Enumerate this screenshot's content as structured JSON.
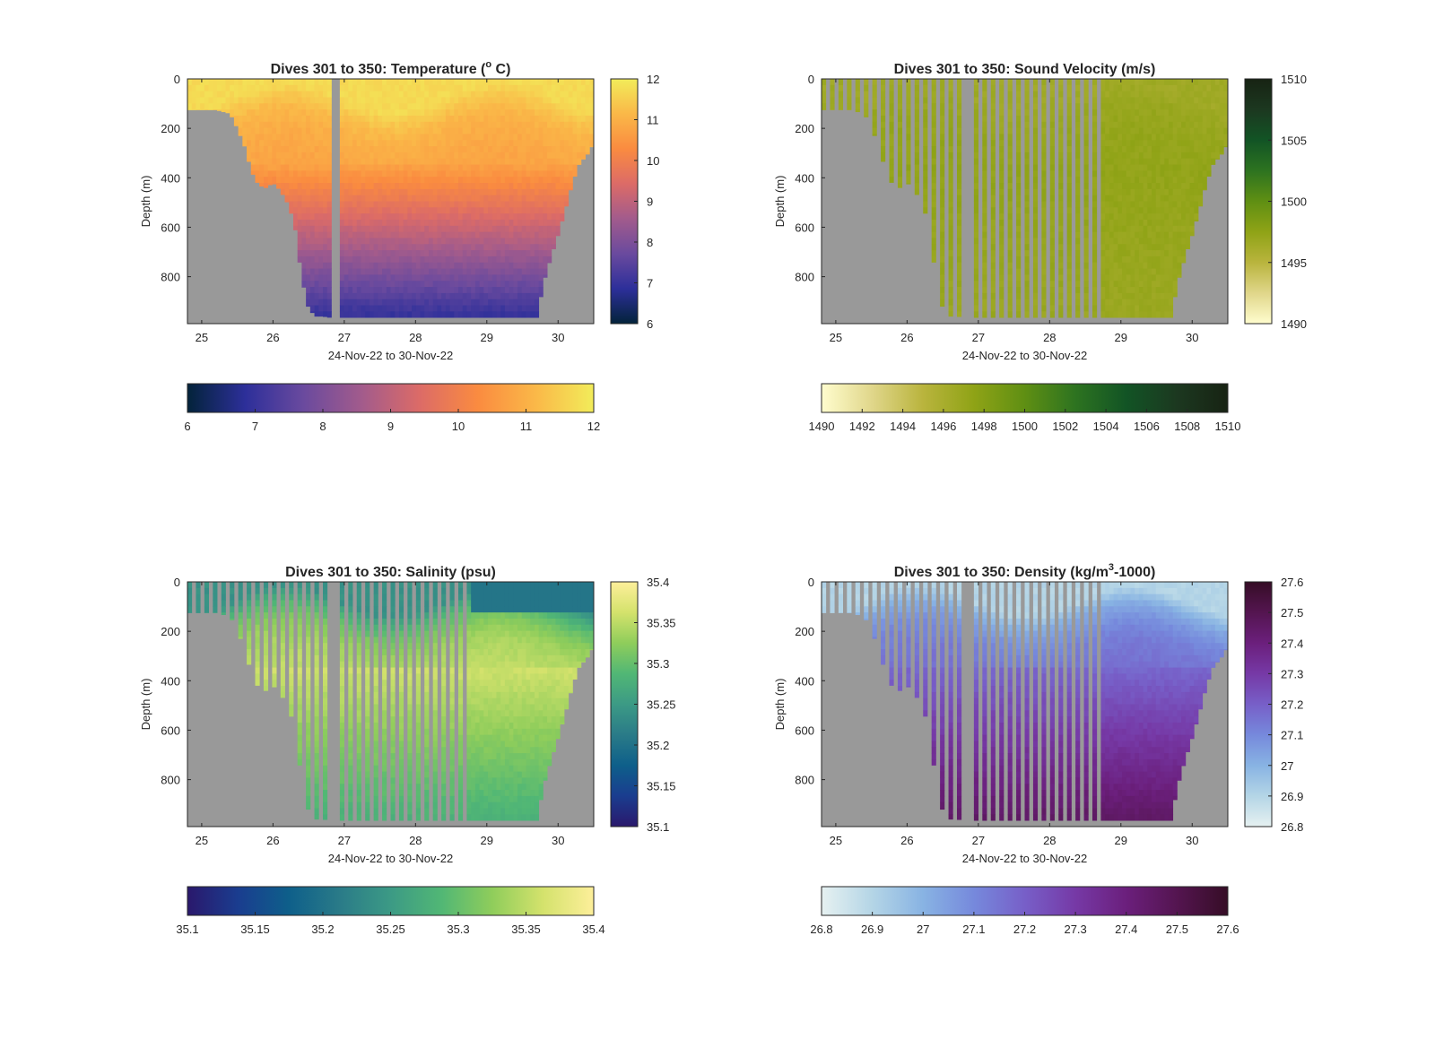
{
  "figure": {
    "background": "#ffffff",
    "bathymetry_color": "#999999"
  },
  "chart_data": [
    {
      "type": "heatmap",
      "title": "Dives 301 to 350: Temperature (",
      "title_sup": "o",
      "title_tail": " C)",
      "xlabel": "24-Nov-22 to 30-Nov-22",
      "ylabel": "Depth (m)",
      "xlim": [
        24.8,
        30.5
      ],
      "ylim": [
        0,
        990
      ],
      "y_reversed": true,
      "xticks": [
        25,
        26,
        27,
        28,
        29,
        30
      ],
      "xtick_labels": [
        "25",
        "26",
        "27",
        "28",
        "29",
        "30"
      ],
      "yticks": [
        0,
        200,
        400,
        600,
        800
      ],
      "ytick_labels": [
        "0",
        "200",
        "400",
        "600",
        "800"
      ],
      "variable": "temperature",
      "clim": [
        6,
        12
      ],
      "colormap": "thermal",
      "colormap_stops": [
        "#03233a",
        "#2d2f9a",
        "#6a4a9e",
        "#a25b8c",
        "#dc6b67",
        "#fa8b40",
        "#fab848",
        "#f2ec5a"
      ],
      "profile_mode": "continuous",
      "gap_x": 26.9,
      "surface_value": 11.7,
      "thermocline_value": 10.7,
      "deep_value": 7.0,
      "colorbar_vertical": {
        "ticks": [
          6,
          7,
          8,
          9,
          10,
          11,
          12
        ],
        "labels": [
          "6",
          "7",
          "8",
          "9",
          "10",
          "11",
          "12"
        ]
      },
      "colorbar_horizontal": {
        "ticks": [
          6,
          7,
          8,
          9,
          10,
          11,
          12
        ],
        "labels": [
          "6",
          "7",
          "8",
          "9",
          "10",
          "11",
          "12"
        ]
      }
    },
    {
      "type": "heatmap",
      "title": "Dives 301 to 350: Sound Velocity (m/s)",
      "title_sup": "",
      "title_tail": "",
      "xlabel": "24-Nov-22 to 30-Nov-22",
      "ylabel": "Depth (m)",
      "xlim": [
        24.8,
        30.5
      ],
      "ylim": [
        0,
        990
      ],
      "y_reversed": true,
      "xticks": [
        25,
        26,
        27,
        28,
        29,
        30
      ],
      "xtick_labels": [
        "25",
        "26",
        "27",
        "28",
        "29",
        "30"
      ],
      "yticks": [
        0,
        200,
        400,
        600,
        800
      ],
      "ytick_labels": [
        "0",
        "200",
        "400",
        "600",
        "800"
      ],
      "variable": "sound_velocity",
      "clim": [
        1490,
        1510
      ],
      "colormap": "speed",
      "colormap_stops": [
        "#fffdce",
        "#e0d68a",
        "#b9b43d",
        "#8fa316",
        "#5f8f13",
        "#2d7320",
        "#125425",
        "#1c3820",
        "#172313"
      ],
      "profile_mode": "strips",
      "gap_x": 26.9,
      "continuous_after": 28.75,
      "surface_value": 1496.5,
      "thermocline_value": 1497.3,
      "deep_value": 1496.8,
      "colorbar_vertical": {
        "ticks": [
          1490,
          1495,
          1500,
          1505,
          1510
        ],
        "labels": [
          "1490",
          "1495",
          "1500",
          "1505",
          "1510"
        ]
      },
      "colorbar_horizontal": {
        "ticks": [
          1490,
          1492,
          1494,
          1496,
          1498,
          1500,
          1502,
          1504,
          1506,
          1508,
          1510
        ],
        "labels": [
          "1490",
          "1492",
          "1494",
          "1496",
          "1498",
          "1500",
          "1502",
          "1504",
          "1506",
          "1508",
          "1510"
        ]
      }
    },
    {
      "type": "heatmap",
      "title": "Dives 301 to 350: Salinity (psu)",
      "title_sup": "",
      "title_tail": "",
      "xlabel": "24-Nov-22 to 30-Nov-22",
      "ylabel": "Depth (m)",
      "xlim": [
        24.8,
        30.5
      ],
      "ylim": [
        0,
        990
      ],
      "y_reversed": true,
      "xticks": [
        25,
        26,
        27,
        28,
        29,
        30
      ],
      "xtick_labels": [
        "25",
        "26",
        "27",
        "28",
        "29",
        "30"
      ],
      "yticks": [
        0,
        200,
        400,
        600,
        800
      ],
      "ytick_labels": [
        "0",
        "200",
        "400",
        "600",
        "800"
      ],
      "variable": "salinity",
      "clim": [
        35.1,
        35.4
      ],
      "colormap": "haline",
      "colormap_stops": [
        "#2a186c",
        "#1a3d8f",
        "#0e5f8a",
        "#2a7b88",
        "#3c9a85",
        "#51b775",
        "#8fcd5b",
        "#d4e26c",
        "#fdef9a"
      ],
      "profile_mode": "strips",
      "gap_x": 26.9,
      "continuous_after": 28.75,
      "surface_value": 35.24,
      "thermocline_value": 35.36,
      "deep_value": 35.28,
      "colorbar_vertical": {
        "ticks": [
          35.1,
          35.15,
          35.2,
          35.25,
          35.3,
          35.35,
          35.4
        ],
        "labels": [
          "35.1",
          "35.15",
          "35.2",
          "35.25",
          "35.3",
          "35.35",
          "35.4"
        ]
      },
      "colorbar_horizontal": {
        "ticks": [
          35.1,
          35.15,
          35.2,
          35.25,
          35.3,
          35.35,
          35.4
        ],
        "labels": [
          "35.1",
          "35.15",
          "35.2",
          "35.25",
          "35.3",
          "35.35",
          "35.4"
        ]
      }
    },
    {
      "type": "heatmap",
      "title": "Dives 301 to 350: Density (kg/m",
      "title_sup": "3",
      "title_tail": "-1000)",
      "xlabel": "24-Nov-22 to 30-Nov-22",
      "ylabel": "Depth (m)",
      "xlim": [
        24.8,
        30.5
      ],
      "ylim": [
        0,
        990
      ],
      "y_reversed": true,
      "xticks": [
        25,
        26,
        27,
        28,
        29,
        30
      ],
      "xtick_labels": [
        "25",
        "26",
        "27",
        "28",
        "29",
        "30"
      ],
      "yticks": [
        0,
        200,
        400,
        600,
        800
      ],
      "ytick_labels": [
        "0",
        "200",
        "400",
        "600",
        "800"
      ],
      "variable": "density",
      "clim": [
        26.8,
        27.6
      ],
      "colormap": "dense",
      "colormap_stops": [
        "#e6f1f1",
        "#b4d5e6",
        "#88b3e3",
        "#7689dc",
        "#775fc8",
        "#7639a6",
        "#6b1f7c",
        "#541550",
        "#360d26"
      ],
      "profile_mode": "strips",
      "gap_x": 26.9,
      "continuous_after": 28.75,
      "surface_value": 26.9,
      "thermocline_value": 27.18,
      "deep_value": 27.45,
      "colorbar_vertical": {
        "ticks": [
          26.8,
          26.9,
          27,
          27.1,
          27.2,
          27.3,
          27.4,
          27.5,
          27.6
        ],
        "labels": [
          "26.8",
          "26.9",
          "27",
          "27.1",
          "27.2",
          "27.3",
          "27.4",
          "27.5",
          "27.6"
        ]
      },
      "colorbar_horizontal": {
        "ticks": [
          26.8,
          26.9,
          27,
          27.1,
          27.2,
          27.3,
          27.4,
          27.5,
          27.6
        ],
        "labels": [
          "26.8",
          "26.9",
          "27",
          "27.1",
          "27.2",
          "27.3",
          "27.4",
          "27.5",
          "27.6"
        ]
      }
    }
  ],
  "bathymetry": {
    "x": [
      24.8,
      25.2,
      25.4,
      25.5,
      25.6,
      25.7,
      25.8,
      25.9,
      26.0,
      26.1,
      26.2,
      26.3,
      26.4,
      26.5,
      26.6,
      26.7,
      26.8,
      26.9,
      27.0,
      28.0,
      29.0,
      29.6,
      29.7,
      29.8,
      29.9,
      30.0,
      30.1,
      30.2,
      30.3,
      30.4,
      30.5
    ],
    "depth": [
      125,
      125,
      140,
      200,
      270,
      375,
      430,
      440,
      420,
      450,
      500,
      580,
      800,
      930,
      960,
      960,
      965,
      965,
      965,
      965,
      965,
      965,
      965,
      820,
      720,
      630,
      530,
      420,
      340,
      310,
      260
    ]
  }
}
